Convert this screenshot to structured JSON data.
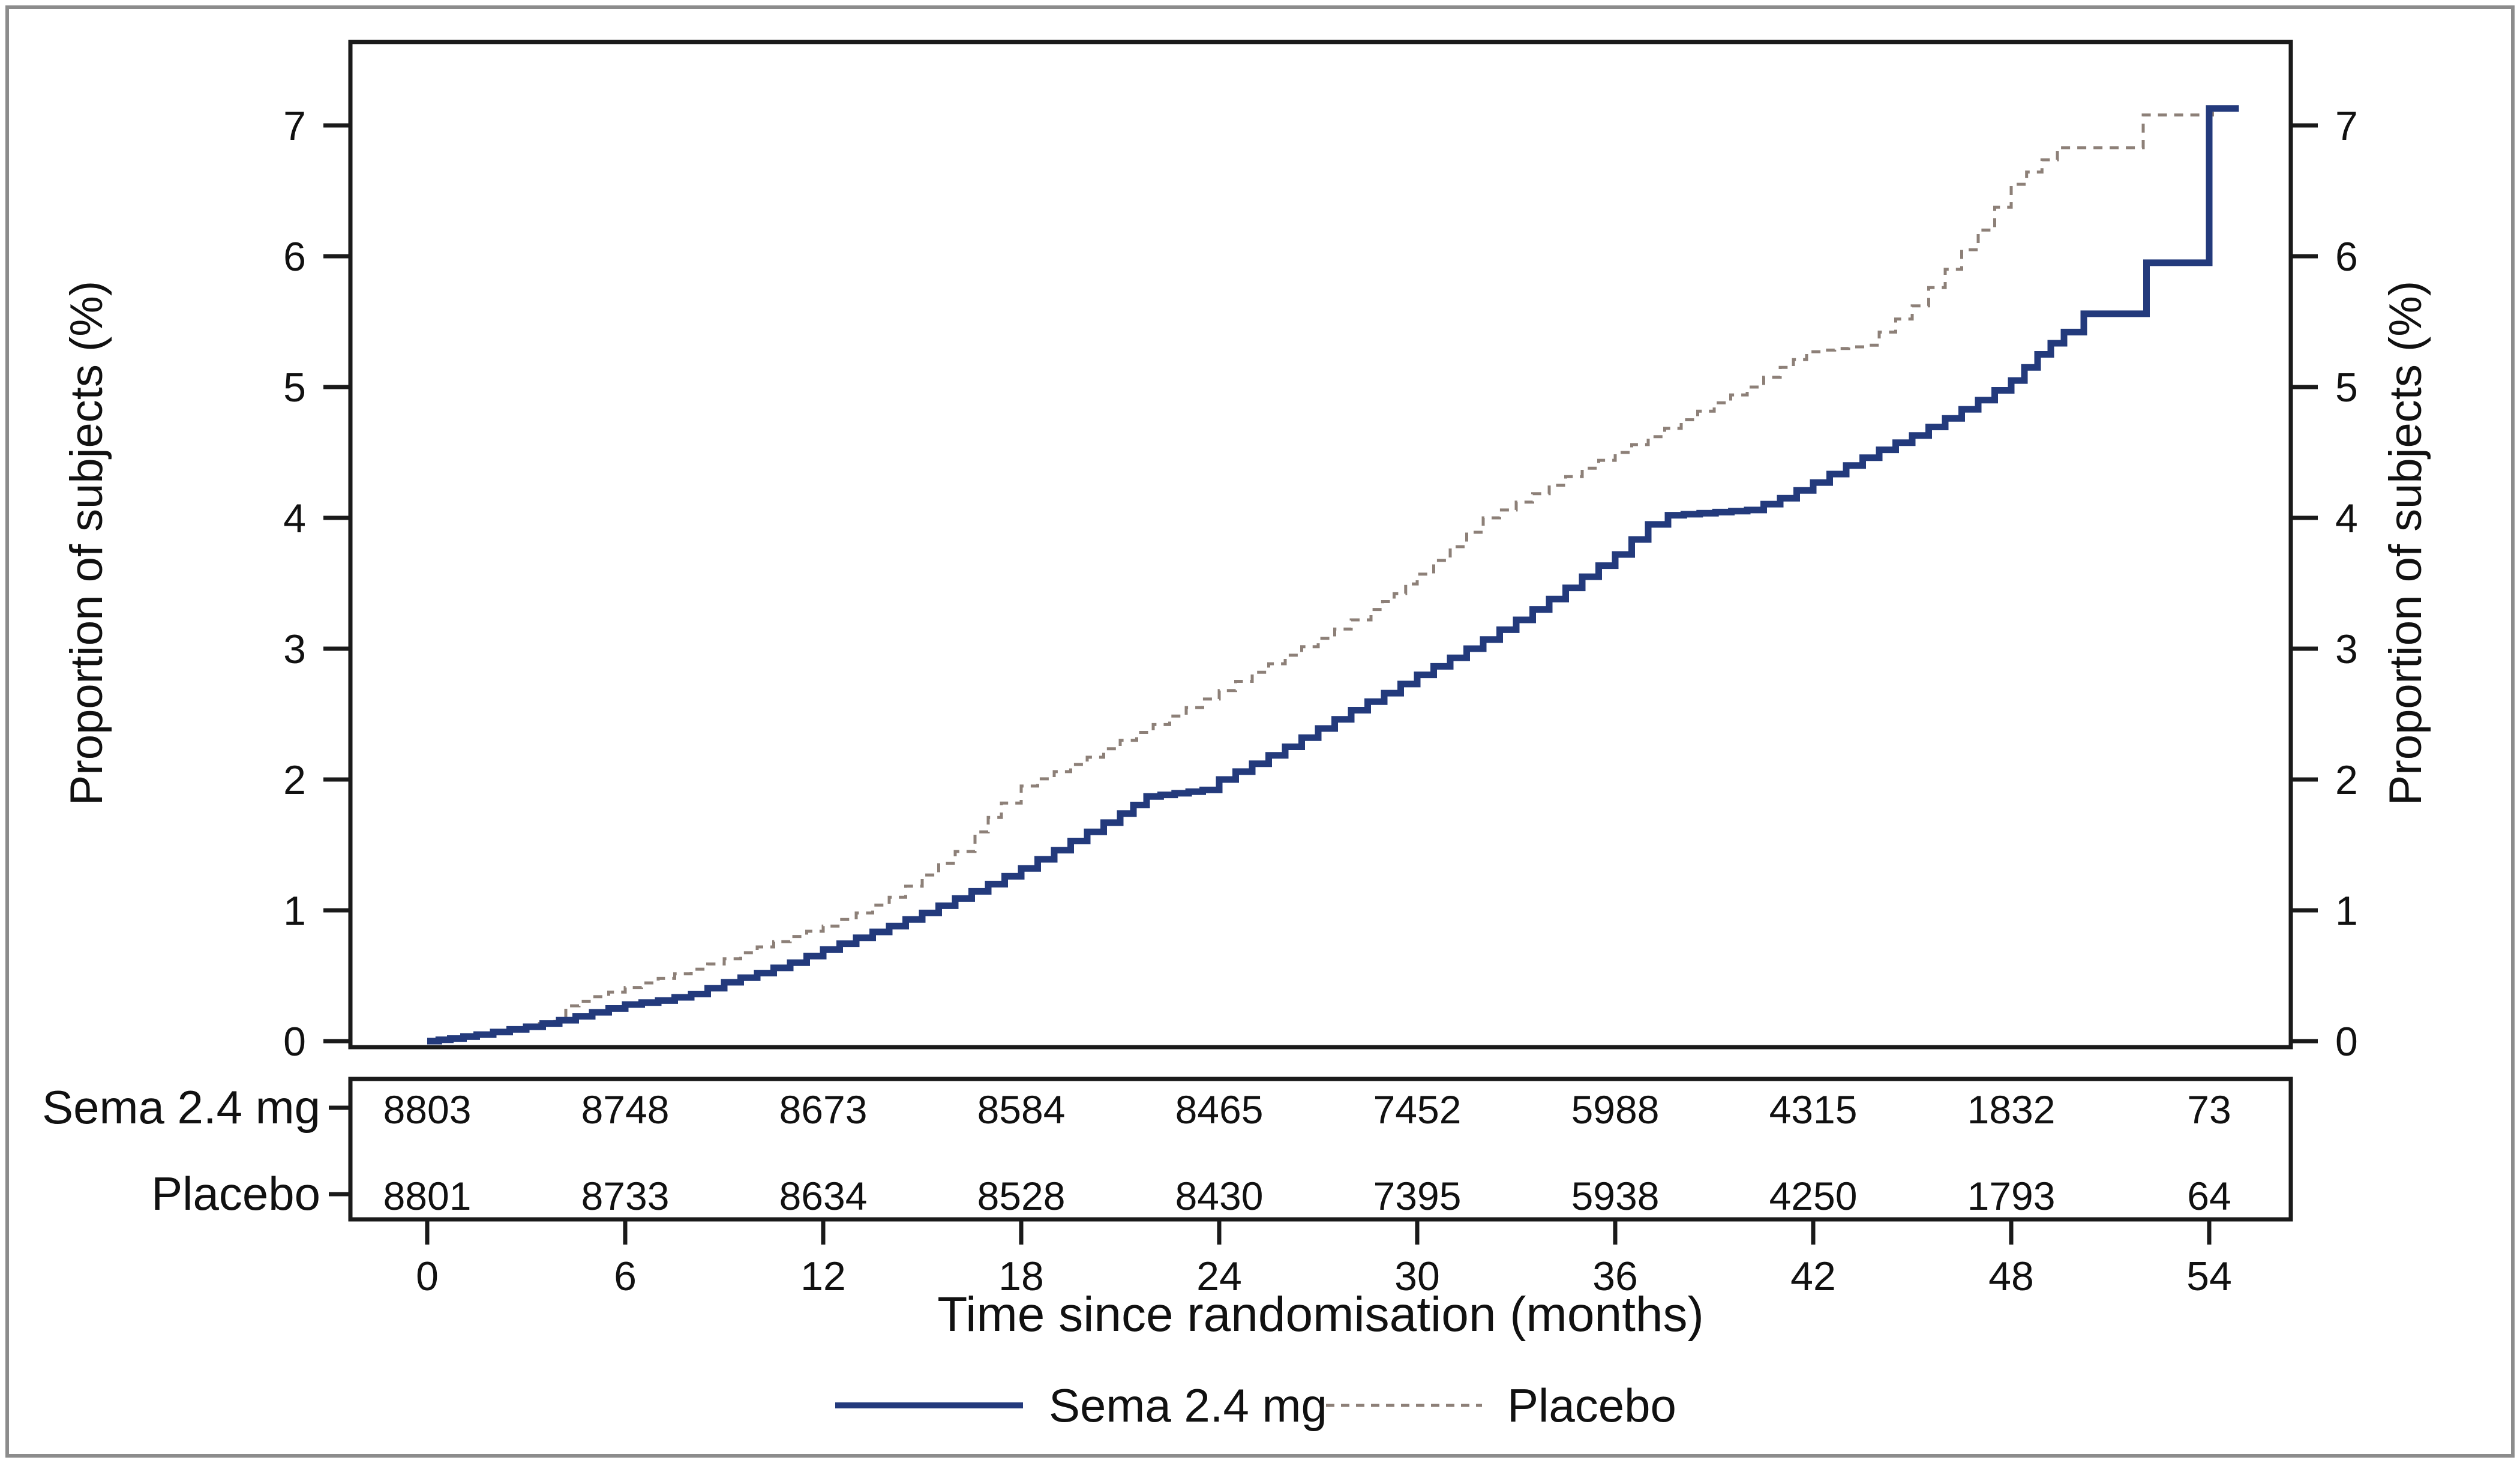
{
  "figure": {
    "background": "#ffffff",
    "border_color": "#8c8c8c"
  },
  "chart_data": {
    "type": "line",
    "title": "",
    "xlabel": "Time since randomisation (months)",
    "ylabel_left": "Proportion of subjects (%)",
    "ylabel_right": "Proportion of subjects (%)",
    "x_ticks": [
      0,
      6,
      12,
      18,
      24,
      30,
      36,
      42,
      48,
      54
    ],
    "y_ticks": [
      0,
      1,
      2,
      3,
      4,
      5,
      6,
      7
    ],
    "xlim": [
      -2.3,
      56.5
    ],
    "ylim": [
      -0.05,
      7.65
    ],
    "grid": false,
    "legend_position": "bottom",
    "series": [
      {
        "name": "Sema 2.4 mg",
        "style": "solid",
        "color": "#233a7c",
        "points": [
          [
            0,
            0
          ],
          [
            0.7,
            0.02
          ],
          [
            1.5,
            0.05
          ],
          [
            2,
            0.07
          ],
          [
            3,
            0.11
          ],
          [
            4,
            0.16
          ],
          [
            5,
            0.22
          ],
          [
            6,
            0.28
          ],
          [
            7,
            0.31
          ],
          [
            8,
            0.36
          ],
          [
            9,
            0.45
          ],
          [
            10,
            0.52
          ],
          [
            11,
            0.6
          ],
          [
            12,
            0.7
          ],
          [
            13,
            0.79
          ],
          [
            14,
            0.88
          ],
          [
            15,
            0.98
          ],
          [
            16,
            1.09
          ],
          [
            17,
            1.2
          ],
          [
            18,
            1.32
          ],
          [
            19,
            1.46
          ],
          [
            20,
            1.6
          ],
          [
            21,
            1.74
          ],
          [
            21.8,
            1.87
          ],
          [
            23.5,
            1.92
          ],
          [
            24,
            2.0
          ],
          [
            25,
            2.12
          ],
          [
            26,
            2.25
          ],
          [
            27,
            2.39
          ],
          [
            28,
            2.53
          ],
          [
            29,
            2.66
          ],
          [
            30,
            2.8
          ],
          [
            31,
            2.93
          ],
          [
            32,
            3.07
          ],
          [
            33,
            3.22
          ],
          [
            34,
            3.38
          ],
          [
            35,
            3.55
          ],
          [
            36,
            3.72
          ],
          [
            37,
            3.95
          ],
          [
            37.6,
            4.02
          ],
          [
            40,
            4.06
          ],
          [
            41,
            4.15
          ],
          [
            42,
            4.27
          ],
          [
            43,
            4.4
          ],
          [
            44,
            4.52
          ],
          [
            45,
            4.63
          ],
          [
            46,
            4.76
          ],
          [
            47,
            4.9
          ],
          [
            48,
            5.05
          ],
          [
            48.8,
            5.25
          ],
          [
            49.6,
            5.42
          ],
          [
            50.2,
            5.56
          ],
          [
            52.1,
            5.56
          ],
          [
            52.1,
            5.95
          ],
          [
            54,
            5.95
          ],
          [
            54,
            7.13
          ],
          [
            54.9,
            7.13
          ]
        ]
      },
      {
        "name": "Placebo",
        "style": "dashed",
        "color": "#8d8078",
        "points": [
          [
            0,
            0
          ],
          [
            0.7,
            0.02
          ],
          [
            1.5,
            0.05
          ],
          [
            2,
            0.08
          ],
          [
            3,
            0.12
          ],
          [
            3.8,
            0.15
          ],
          [
            4.2,
            0.27
          ],
          [
            5,
            0.34
          ],
          [
            6,
            0.41
          ],
          [
            7,
            0.48
          ],
          [
            8,
            0.55
          ],
          [
            9,
            0.63
          ],
          [
            10,
            0.72
          ],
          [
            11,
            0.8
          ],
          [
            12,
            0.88
          ],
          [
            13,
            0.98
          ],
          [
            14,
            1.1
          ],
          [
            15,
            1.27
          ],
          [
            16,
            1.45
          ],
          [
            16.6,
            1.6
          ],
          [
            17.4,
            1.82
          ],
          [
            18,
            1.95
          ],
          [
            19,
            2.06
          ],
          [
            20,
            2.17
          ],
          [
            21,
            2.3
          ],
          [
            22,
            2.42
          ],
          [
            23,
            2.55
          ],
          [
            24,
            2.68
          ],
          [
            25,
            2.82
          ],
          [
            26,
            2.95
          ],
          [
            27,
            3.08
          ],
          [
            28,
            3.22
          ],
          [
            28.6,
            3.3
          ],
          [
            29.3,
            3.42
          ],
          [
            30,
            3.57
          ],
          [
            31,
            3.78
          ],
          [
            32,
            4.0
          ],
          [
            33,
            4.12
          ],
          [
            34,
            4.25
          ],
          [
            35,
            4.38
          ],
          [
            36,
            4.5
          ],
          [
            37,
            4.62
          ],
          [
            38,
            4.75
          ],
          [
            39,
            4.88
          ],
          [
            40,
            5.0
          ],
          [
            41,
            5.15
          ],
          [
            41.8,
            5.27
          ],
          [
            43.5,
            5.32
          ],
          [
            44,
            5.42
          ],
          [
            45,
            5.62
          ],
          [
            46,
            5.9
          ],
          [
            47,
            6.2
          ],
          [
            48,
            6.55
          ],
          [
            49.4,
            6.83
          ],
          [
            52,
            6.83
          ],
          [
            52,
            7.08
          ],
          [
            54.1,
            7.08
          ],
          [
            54.1,
            7.13
          ],
          [
            54.9,
            7.13
          ]
        ]
      }
    ]
  },
  "risk_table": {
    "timepoints": [
      0,
      6,
      12,
      18,
      24,
      30,
      36,
      42,
      48,
      54
    ],
    "rows": [
      {
        "label": "Sema 2.4 mg",
        "counts": [
          "8803",
          "8748",
          "8673",
          "8584",
          "8465",
          "7452",
          "5988",
          "4315",
          "1832",
          "73"
        ]
      },
      {
        "label": "Placebo",
        "counts": [
          "8801",
          "8733",
          "8634",
          "8528",
          "8430",
          "7395",
          "5938",
          "4250",
          "1793",
          "64"
        ]
      }
    ]
  },
  "legend": {
    "items": [
      {
        "label": "Sema 2.4 mg",
        "style": "solid"
      },
      {
        "label": "Placebo",
        "style": "dashed"
      }
    ]
  }
}
